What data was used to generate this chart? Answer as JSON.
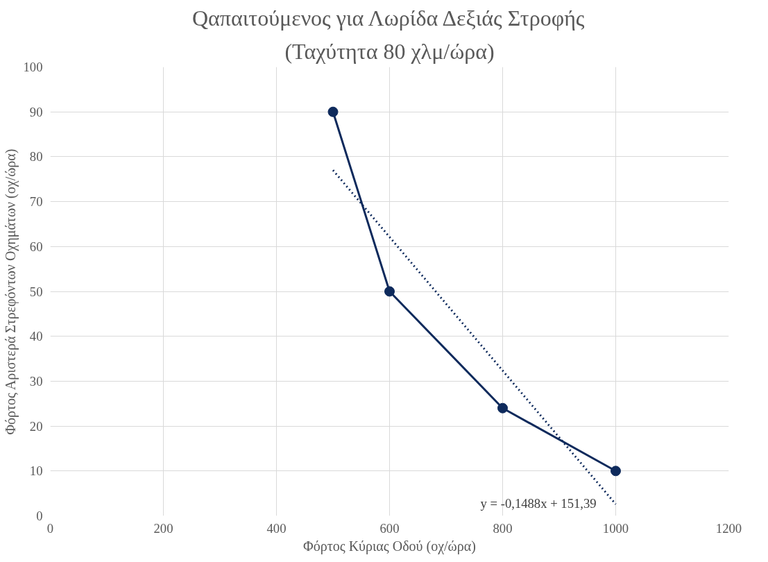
{
  "chart_data": {
    "type": "line",
    "title": "Qαπαιτούμενος για Λωρίδα Δεξιάς Στροφής",
    "subtitle": "(Ταχύτητα 80 χλμ/ώρα)",
    "xlabel": "Φόρτος Κύριας Οδού (οχ/ώρα)",
    "ylabel": "Φόρτος Αριστερά Στρεφόντων Οχημάτων (οχ/ώρα)",
    "xlim": [
      0,
      1200
    ],
    "ylim": [
      0,
      100
    ],
    "xticks": [
      0,
      200,
      400,
      600,
      800,
      1000,
      1200
    ],
    "yticks": [
      0,
      10,
      20,
      30,
      40,
      50,
      60,
      70,
      80,
      90,
      100
    ],
    "grid": true,
    "series": [
      {
        "color": "#0e2a5c",
        "x": [
          500,
          600,
          800,
          1000
        ],
        "values": [
          90,
          50,
          24,
          10
        ],
        "marker": "circle",
        "line_style": "solid"
      },
      {
        "color": "#0e2a5c",
        "x": [
          500,
          1000
        ],
        "values": [
          77,
          2.6
        ],
        "marker": "none",
        "line_style": "dotted"
      }
    ],
    "annotations": [
      "y = -0,1488x + 151,39"
    ]
  }
}
